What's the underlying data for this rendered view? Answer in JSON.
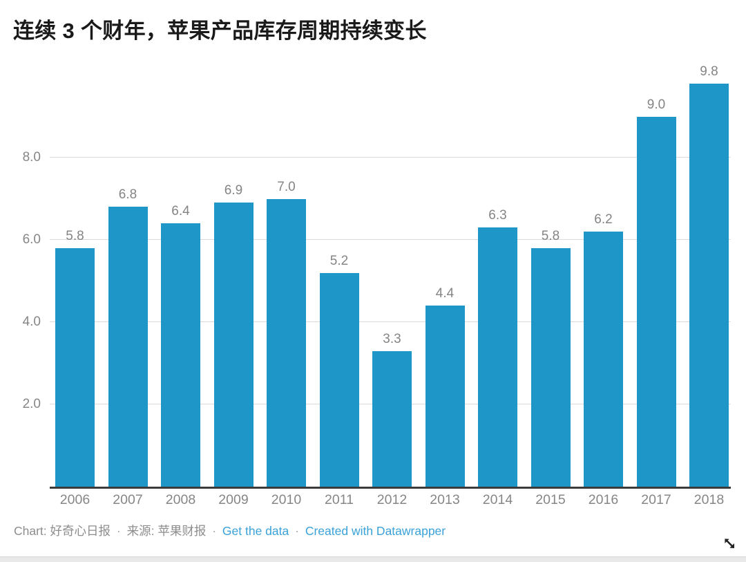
{
  "title": "连续 3 个财年，苹果产品库存周期持续变长",
  "chart_data": {
    "type": "bar",
    "title": "连续 3 个财年，苹果产品库存周期持续变长",
    "categories": [
      "2006",
      "2007",
      "2008",
      "2009",
      "2010",
      "2011",
      "2012",
      "2013",
      "2014",
      "2015",
      "2016",
      "2017",
      "2018"
    ],
    "values": [
      5.8,
      6.8,
      6.4,
      6.9,
      7.0,
      5.2,
      3.3,
      4.4,
      6.3,
      5.8,
      6.2,
      9.0,
      9.8
    ],
    "value_labels": [
      "5.8",
      "6.8",
      "6.4",
      "6.9",
      "7.0",
      "5.2",
      "3.3",
      "4.4",
      "6.3",
      "5.8",
      "6.2",
      "9.0",
      "9.8"
    ],
    "xlabel": "",
    "ylabel": "",
    "ylim": [
      0,
      10.1
    ],
    "yticks": [
      {
        "value": 2,
        "label": "2.0"
      },
      {
        "value": 4,
        "label": "4.0"
      },
      {
        "value": 6,
        "label": "6.0"
      },
      {
        "value": 8,
        "label": "8.0"
      }
    ],
    "grid": true,
    "legend": "none",
    "colors": {
      "bar": "#1e96c8",
      "grid_line": "#d9d9d9",
      "baseline": "#3b3b3b",
      "value_label": "#848484",
      "tick_label": "#868686",
      "title": "#1a1a1a"
    }
  },
  "footer": {
    "parts": [
      {
        "text": "Chart: 好奇心日报"
      },
      {
        "text": "·"
      },
      {
        "text": "来源: 苹果财报"
      },
      {
        "text": "·"
      },
      {
        "text": "Get the data"
      },
      {
        "text": "·"
      },
      {
        "text": "Created with Datawrapper"
      }
    ],
    "link_color": "#3aa2d9"
  },
  "icons": {
    "resize_icon": "diagonal-resize-arrow"
  }
}
